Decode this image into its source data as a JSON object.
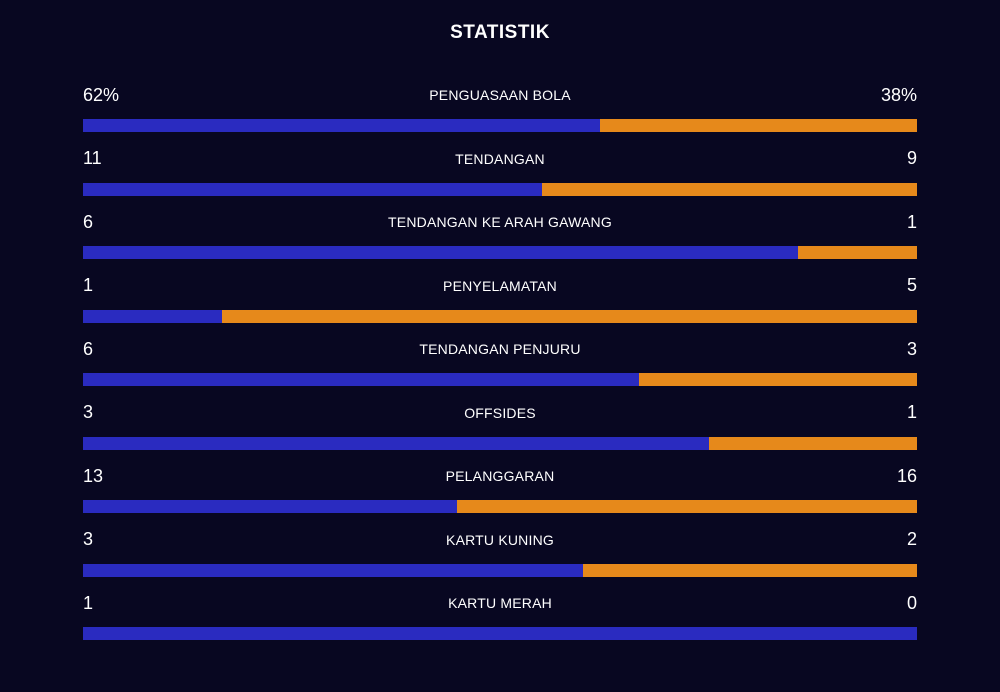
{
  "title": "STATISTIK",
  "colors": {
    "home": "#2a2bc0",
    "away": "#e6891b",
    "background": "#080721"
  },
  "stats": [
    {
      "label": "PENGUASAAN BOLA",
      "home": "62%",
      "away": "38%",
      "home_value": 62,
      "away_value": 38
    },
    {
      "label": "TENDANGAN",
      "home": "11",
      "away": "9",
      "home_value": 11,
      "away_value": 9
    },
    {
      "label": "TENDANGAN KE ARAH GAWANG",
      "home": "6",
      "away": "1",
      "home_value": 6,
      "away_value": 1
    },
    {
      "label": "PENYELAMATAN",
      "home": "1",
      "away": "5",
      "home_value": 1,
      "away_value": 5
    },
    {
      "label": "TENDANGAN PENJURU",
      "home": "6",
      "away": "3",
      "home_value": 6,
      "away_value": 3
    },
    {
      "label": "OFFSIDES",
      "home": "3",
      "away": "1",
      "home_value": 3,
      "away_value": 1
    },
    {
      "label": "PELANGGARAN",
      "home": "13",
      "away": "16",
      "home_value": 13,
      "away_value": 16
    },
    {
      "label": "KARTU KUNING",
      "home": "3",
      "away": "2",
      "home_value": 3,
      "away_value": 2
    },
    {
      "label": "KARTU MERAH",
      "home": "1",
      "away": "0",
      "home_value": 1,
      "away_value": 0
    }
  ]
}
